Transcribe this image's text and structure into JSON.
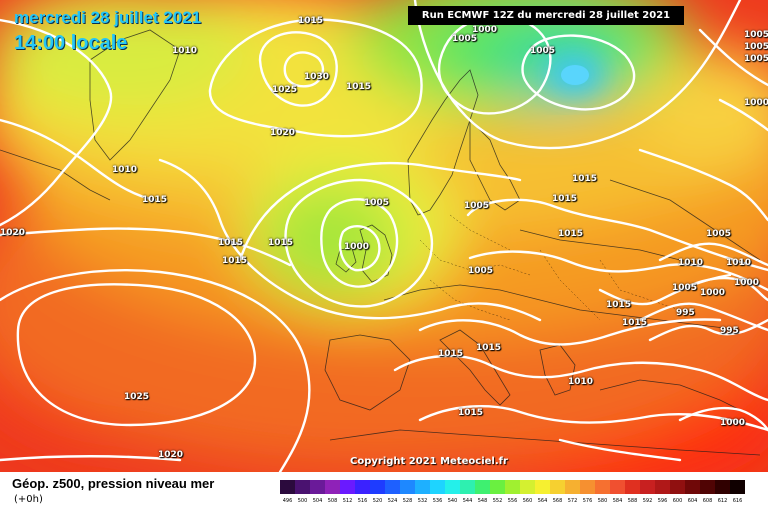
{
  "header": {
    "date": "mercredi 28 juillet 2021",
    "local_time": "14:00 locale",
    "run_info": "Run ECMWF 12Z du mercredi 28 juillet 2021"
  },
  "copyright": "Copyright 2021 Meteociel.fr",
  "footer": {
    "field_label": "Géop. z500, pression niveau mer",
    "step_label": "(+0h)"
  },
  "colors": {
    "low_center": "#38c7f6",
    "mid_green": "#8fe440",
    "yellow": "#f3e23e",
    "orange": "#f59a20",
    "red": "#f04020"
  },
  "isobar_labels": [
    "1015",
    "1010",
    "1030",
    "1025",
    "1015",
    "1020",
    "1010",
    "1015",
    "1020",
    "1015",
    "1015",
    "1015",
    "1005",
    "1000",
    "1025",
    "1020",
    "1005",
    "1005",
    "1000",
    "1005",
    "1015",
    "1015",
    "1015",
    "1005",
    "1010",
    "1010",
    "1005",
    "1000",
    "1000",
    "995",
    "995",
    "1015",
    "1015",
    "1015",
    "1015",
    "1010",
    "1015",
    "1000",
    "1005",
    "1005",
    "1005",
    "1000",
    "1005"
  ],
  "color_scale": {
    "labels": [
      "496",
      "500",
      "504",
      "508",
      "512",
      "516",
      "520",
      "524",
      "528",
      "532",
      "536",
      "540",
      "544",
      "548",
      "552",
      "556",
      "560",
      "564",
      "568",
      "572",
      "576",
      "580",
      "584",
      "588",
      "592",
      "596",
      "600",
      "604",
      "608",
      "612",
      "616"
    ],
    "colors": [
      "#2b0a3d",
      "#4a1270",
      "#6a1a99",
      "#8f22b8",
      "#6a1aff",
      "#3b22ff",
      "#1e3cff",
      "#1e60ff",
      "#1e88ff",
      "#1eb0ff",
      "#1ed4ff",
      "#24f0ea",
      "#2ef0b0",
      "#3ef070",
      "#6af040",
      "#a0f030",
      "#d4f030",
      "#f6f030",
      "#f6d030",
      "#f6b030",
      "#f69030",
      "#f67030",
      "#f05030",
      "#e03020",
      "#c82020",
      "#b01818",
      "#901010",
      "#700808",
      "#500404",
      "#300000",
      "#100000"
    ]
  }
}
